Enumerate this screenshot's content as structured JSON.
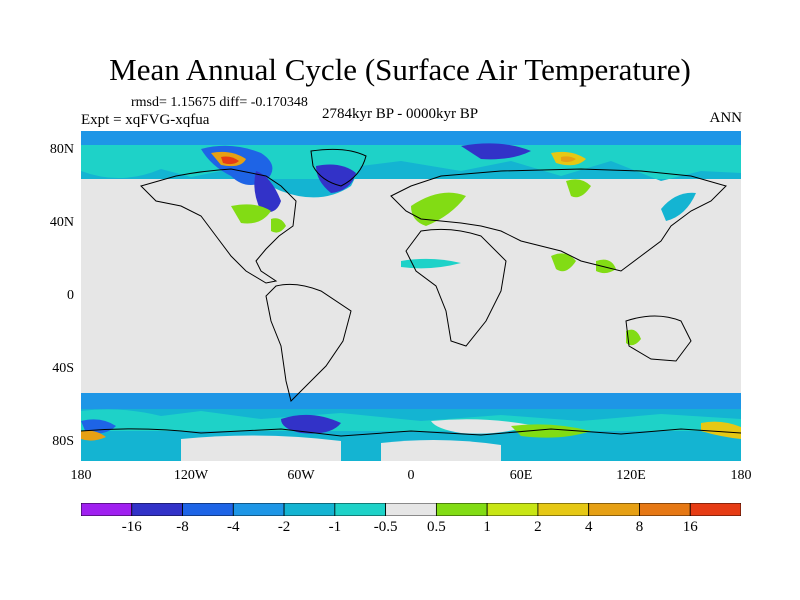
{
  "plot": {
    "title": "Mean Annual Cycle (Surface Air Temperature)",
    "stats": "rmsd= 1.15675 diff= -0.170348",
    "experiment": "Expt = xqFVG-xqfua",
    "period": "2784kyr BP - 0000kyr BP",
    "season": "ANN"
  },
  "axes": {
    "lat_labels": [
      "80N",
      "40N",
      "0",
      "40S",
      "80S"
    ],
    "lon_labels": [
      "180",
      "120W",
      "60W",
      "0",
      "60E",
      "120E",
      "180"
    ]
  },
  "colorbar": {
    "colors": [
      "#a020f0",
      "#3232c8",
      "#1e64e6",
      "#1e96e6",
      "#14b4d2",
      "#1ed2c8",
      "#e6e6e6",
      "#82dc14",
      "#c8e614",
      "#e6c814",
      "#e6a014",
      "#e67814",
      "#e63c14"
    ],
    "labels": [
      "-16",
      "-8",
      "-4",
      "-2",
      "-1",
      "-0.5",
      "0.5",
      "1",
      "2",
      "4",
      "8",
      "16"
    ]
  },
  "colors": {
    "background_field": "#e6e6e6",
    "coastline": "#000000"
  }
}
